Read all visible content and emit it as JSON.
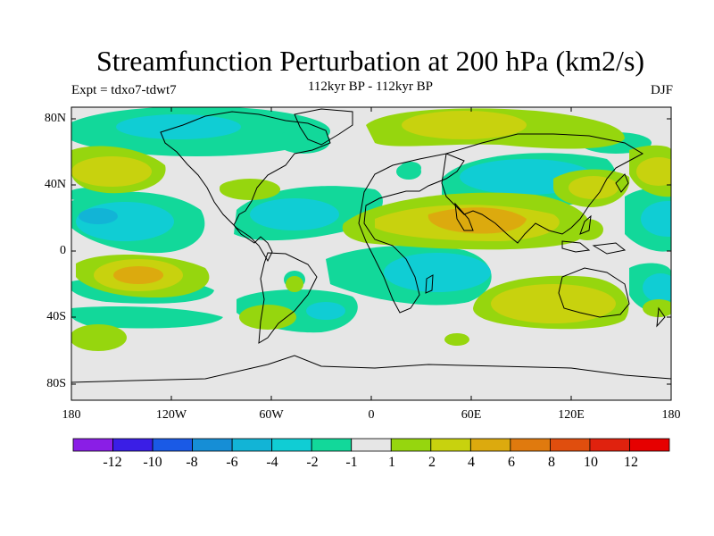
{
  "title": "Streamfunction Perturbation at 200 hPa (km2/s)",
  "subtitle": "112kyr BP - 112kyr BP",
  "experiment_label": "Expt = tdxo7-tdwt7",
  "season_label": "DJF",
  "lat_labels": [
    "80N",
    "40N",
    "0",
    "40S",
    "80S"
  ],
  "lon_labels": [
    "180",
    "120W",
    "60W",
    "0",
    "60E",
    "120E",
    "180"
  ],
  "colorbar": {
    "labels": [
      "-12",
      "-10",
      "-8",
      "-6",
      "-4",
      "-2",
      "-1",
      "1",
      "2",
      "4",
      "6",
      "8",
      "10",
      "12"
    ],
    "colors": [
      "#8a1ee6",
      "#3a1ee6",
      "#1a5ae6",
      "#168ed6",
      "#12b4d6",
      "#10cdd4",
      "#12d89a",
      "#e6e6e6",
      "#96d60e",
      "#c8d20e",
      "#dcaa0e",
      "#e07a0e",
      "#e04e0e",
      "#e0220e",
      "#e60000"
    ]
  },
  "map_colors": {
    "background": "#e6e6e6",
    "neg1": "#12d89a",
    "neg2": "#10cdd4",
    "neg3": "#12b4d6",
    "pos1": "#96d60e",
    "pos2": "#c8d20e",
    "pos3": "#dcaa0e",
    "coast": "#000000"
  }
}
